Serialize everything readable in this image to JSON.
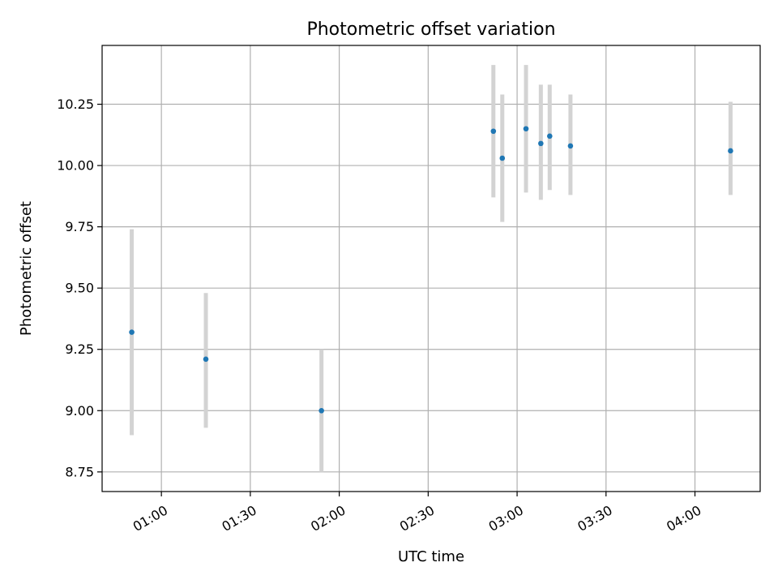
{
  "chart_data": {
    "type": "scatter",
    "title": "Photometric offset variation",
    "xlabel": "UTC time",
    "ylabel": "Photometric offset",
    "x_type": "time",
    "xlim": [
      "00:40",
      "04:22"
    ],
    "ylim": [
      8.67,
      10.49
    ],
    "x_ticks": [
      "01:00",
      "01:30",
      "02:00",
      "02:30",
      "03:00",
      "03:30",
      "04:00"
    ],
    "y_ticks": [
      "8.75",
      "9.00",
      "9.25",
      "9.50",
      "9.75",
      "10.00",
      "10.25"
    ],
    "grid": true,
    "marker_color": "#1f77b4",
    "errorbar_color": "#d3d3d3",
    "points": [
      {
        "x": "00:50",
        "y": 9.32,
        "yerr_low": 8.9,
        "yerr_high": 9.74
      },
      {
        "x": "01:15",
        "y": 9.21,
        "yerr_low": 8.93,
        "yerr_high": 9.48
      },
      {
        "x": "01:54",
        "y": 9.0,
        "yerr_low": 8.75,
        "yerr_high": 9.25
      },
      {
        "x": "02:52",
        "y": 10.14,
        "yerr_low": 9.87,
        "yerr_high": 10.41
      },
      {
        "x": "02:55",
        "y": 10.03,
        "yerr_low": 9.77,
        "yerr_high": 10.29
      },
      {
        "x": "03:03",
        "y": 10.15,
        "yerr_low": 9.89,
        "yerr_high": 10.41
      },
      {
        "x": "03:08",
        "y": 10.09,
        "yerr_low": 9.86,
        "yerr_high": 10.33
      },
      {
        "x": "03:11",
        "y": 10.12,
        "yerr_low": 9.9,
        "yerr_high": 10.33
      },
      {
        "x": "03:18",
        "y": 10.08,
        "yerr_low": 9.88,
        "yerr_high": 10.29
      },
      {
        "x": "04:12",
        "y": 10.06,
        "yerr_low": 9.88,
        "yerr_high": 10.26
      }
    ]
  }
}
